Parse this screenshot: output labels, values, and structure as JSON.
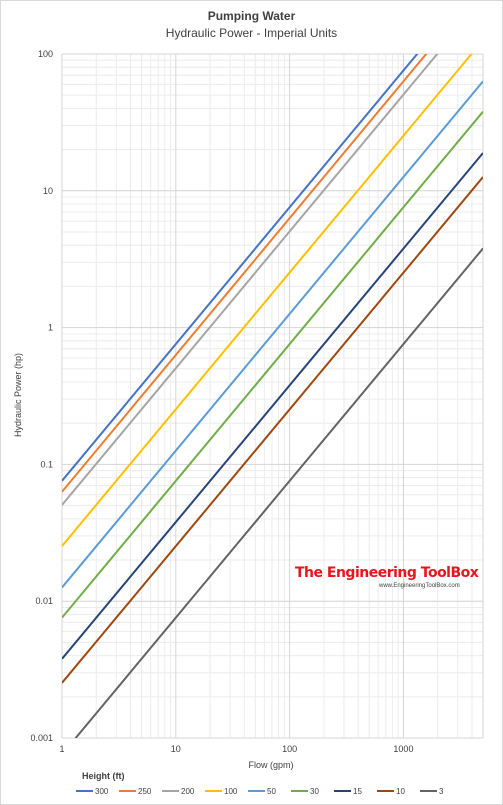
{
  "chart_data": {
    "type": "line",
    "title": "Pumping Water",
    "subtitle": "Hydraulic Power - Imperial Units",
    "xlabel": "Flow (gpm)",
    "ylabel": "Hydraulic Power (hp)",
    "xscale": "log",
    "yscale": "log",
    "xlim": [
      1,
      5000
    ],
    "ylim": [
      0.001,
      100
    ],
    "xticks": [
      "1",
      "10",
      "100",
      "1000"
    ],
    "yticks": [
      "0.001",
      "0.01",
      "0.1",
      "1",
      "10",
      "100"
    ],
    "grid": true,
    "legend": {
      "title": "Height (ft)",
      "position": "bottom"
    },
    "series": [
      {
        "name": "300",
        "color": "#4472c4",
        "x": [
          1,
          5000
        ],
        "y": [
          0.0758,
          378.8
        ]
      },
      {
        "name": "250",
        "color": "#ed7d31",
        "x": [
          1,
          5000
        ],
        "y": [
          0.0631,
          315.7
        ]
      },
      {
        "name": "200",
        "color": "#a5a5a5",
        "x": [
          1,
          5000
        ],
        "y": [
          0.0505,
          252.5
        ]
      },
      {
        "name": "100",
        "color": "#ffc000",
        "x": [
          1,
          5000
        ],
        "y": [
          0.0253,
          126.3
        ]
      },
      {
        "name": "50",
        "color": "#5b9bd5",
        "x": [
          1,
          5000
        ],
        "y": [
          0.0126,
          63.1
        ]
      },
      {
        "name": "30",
        "color": "#70ad47",
        "x": [
          1,
          5000
        ],
        "y": [
          0.00758,
          37.9
        ]
      },
      {
        "name": "15",
        "color": "#264478",
        "x": [
          1,
          5000
        ],
        "y": [
          0.00379,
          18.9
        ]
      },
      {
        "name": "10",
        "color": "#9e480e",
        "x": [
          1,
          5000
        ],
        "y": [
          0.00253,
          12.6
        ]
      },
      {
        "name": "3",
        "color": "#636363",
        "x": [
          1,
          5000
        ],
        "y": [
          0.000758,
          3.79
        ]
      }
    ]
  },
  "watermark": {
    "brand": "The Engineering ToolBox",
    "url": "www.EngineeringToolBox.com"
  }
}
